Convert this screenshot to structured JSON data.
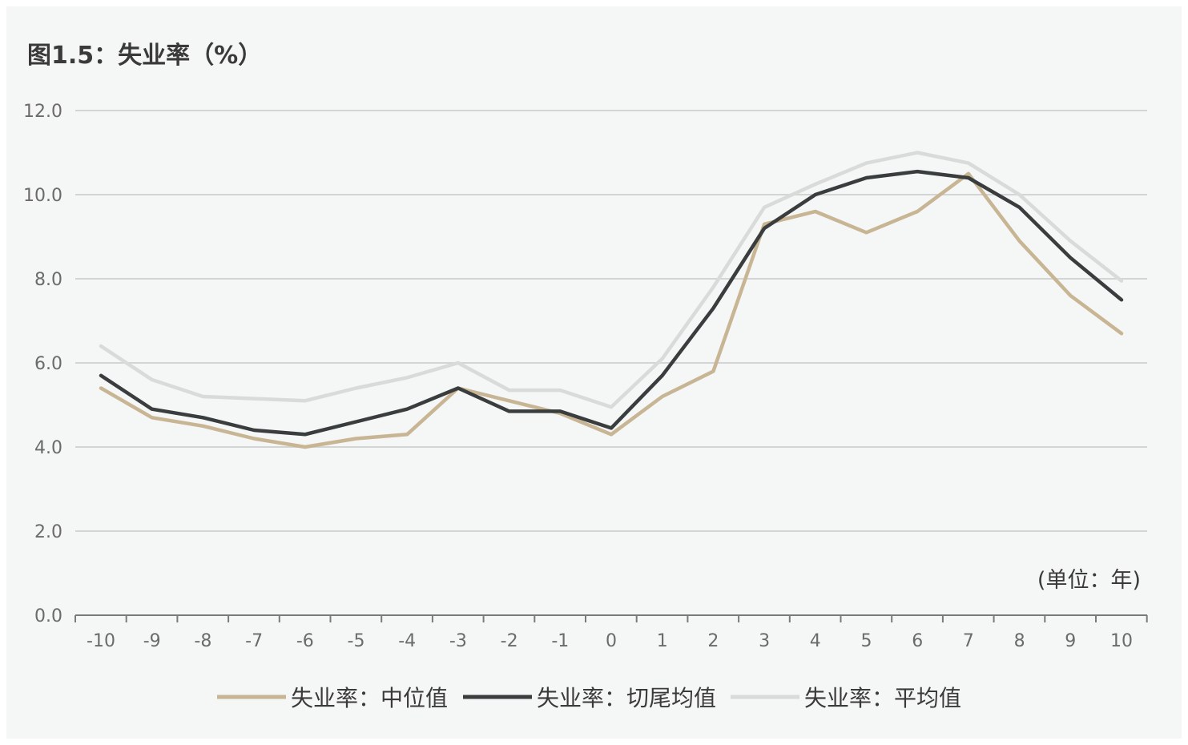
{
  "title": "图1.5：失业率（%）",
  "unit_note": "(单位：年)",
  "chart_data": {
    "type": "line",
    "title": "图1.5：失业率（%）",
    "xlabel": "",
    "ylabel": "",
    "unit_note": "(单位：年)",
    "x": [
      -10,
      -9,
      -8,
      -7,
      -6,
      -5,
      -4,
      -3,
      -2,
      -1,
      0,
      1,
      2,
      3,
      4,
      5,
      6,
      7,
      8,
      9,
      10
    ],
    "ylim": [
      0,
      12
    ],
    "yticks": [
      "0.0",
      "2.0",
      "4.0",
      "6.0",
      "8.0",
      "10.0",
      "12.0"
    ],
    "grid": "horizontal",
    "legend_position": "bottom",
    "series": [
      {
        "name": "失业率：中位值",
        "color": "#c8b594",
        "values": [
          5.4,
          4.7,
          4.5,
          4.2,
          4.0,
          4.2,
          4.3,
          5.4,
          5.1,
          4.8,
          4.3,
          5.2,
          5.8,
          9.3,
          9.6,
          9.1,
          9.6,
          10.5,
          8.9,
          7.6,
          6.7
        ]
      },
      {
        "name": "失业率：切尾均值",
        "color": "#3a3d3e",
        "values": [
          5.7,
          4.9,
          4.7,
          4.4,
          4.3,
          4.6,
          4.9,
          5.4,
          4.85,
          4.85,
          4.45,
          5.7,
          7.3,
          9.2,
          10.0,
          10.4,
          10.55,
          10.4,
          9.7,
          8.5,
          7.5
        ]
      },
      {
        "name": "失业率：平均值",
        "color": "#d9dbdb",
        "values": [
          6.4,
          5.6,
          5.2,
          5.15,
          5.1,
          5.4,
          5.65,
          6.0,
          5.35,
          5.35,
          4.95,
          6.1,
          7.8,
          9.7,
          10.25,
          10.75,
          11.0,
          10.75,
          10.0,
          8.9,
          7.95
        ]
      }
    ]
  }
}
